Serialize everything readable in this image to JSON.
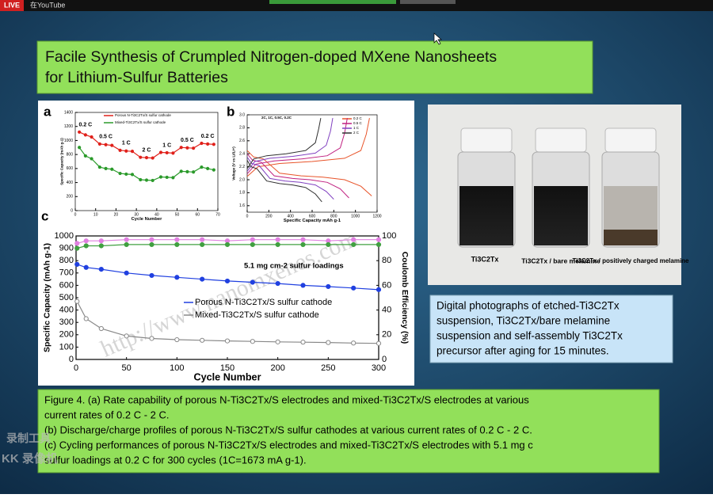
{
  "top_bar": {
    "live": "LIVE",
    "source": "在YouTube"
  },
  "slide": {
    "title": [
      "Facile Synthesis of Crumpled Nitrogen-doped MXene Nanosheets",
      "for Lithium-Sulfur Batteries"
    ],
    "figure": {
      "panels": [
        {
          "label": "a",
          "type": "line",
          "x_label": "Cycle Number",
          "y_label": "Specific Capacity (mAh g-1)",
          "x": [
            2,
            5,
            8,
            12,
            15,
            18,
            22,
            25,
            28,
            32,
            35,
            38,
            42,
            45,
            48,
            52,
            55,
            58,
            62,
            65,
            68
          ],
          "xlim": [
            0,
            70
          ],
          "xticks": [
            0,
            10,
            20,
            30,
            40,
            50,
            60,
            70
          ],
          "ylim": [
            0,
            1400
          ],
          "yticks": [
            0,
            200,
            400,
            600,
            800,
            1000,
            1200,
            1400
          ],
          "rate_labels": [
            "0.2 C",
            "0.5 C",
            "1 C",
            "2 C",
            "1 C",
            "0.5 C",
            "0.2 C"
          ],
          "series": [
            {
              "name": "Porous N-Ti3C2Tx/S sulfur cathode",
              "color": "#e0201a",
              "values": [
                1120,
                1080,
                1050,
                950,
                940,
                930,
                860,
                850,
                845,
                760,
                755,
                750,
                830,
                825,
                820,
                900,
                895,
                890,
                960,
                950,
                945
              ]
            },
            {
              "name": "Mixed-Ti3C2Tx/S sulfur cathode",
              "color": "#2a9a2a",
              "values": [
                900,
                780,
                740,
                620,
                600,
                590,
                530,
                520,
                515,
                440,
                435,
                430,
                480,
                475,
                470,
                560,
                555,
                550,
                620,
                600,
                580
              ]
            }
          ]
        },
        {
          "label": "b",
          "type": "curve",
          "x_label": "Specific Capacity mAh g-1",
          "y_label": "Voltage (V vs Li/Li+)",
          "annotation": "2C, 1C, 0.5C, 0.2C",
          "xlim": [
            0,
            1200
          ],
          "xticks": [
            0,
            200,
            400,
            600,
            800,
            1000,
            1200
          ],
          "ylim": [
            1.5,
            3.0
          ],
          "yticks": [
            1.6,
            1.8,
            {
              "value": 2,
              "label": "2.0"
            },
            2.2,
            2.4,
            2.6,
            2.8,
            {
              "value": 3,
              "label": "3.0"
            }
          ],
          "series": [
            {
              "name": "0.2 C",
              "color": "#e8542a",
              "x": [
                0,
                60,
                150,
                300,
                500,
                700,
                900,
                1050,
                1150,
                null,
                0,
                100,
                300,
                600,
                900,
                1050,
                1100,
                1130
              ],
              "values": [
                2.45,
                2.35,
                2.32,
                2.1,
                2.06,
                2.04,
                2.0,
                1.9,
                1.75,
                null,
                2.05,
                2.2,
                2.25,
                2.28,
                2.33,
                2.45,
                2.7,
                2.95
              ]
            },
            {
              "name": "0.5 C",
              "color": "#c02080",
              "x": [
                0,
                50,
                130,
                250,
                420,
                580,
                740,
                860,
                940,
                null,
                0,
                80,
                250,
                500,
                740,
                860,
                900,
                925
              ],
              "values": [
                2.4,
                2.3,
                2.27,
                2.06,
                2.02,
                2.0,
                1.96,
                1.86,
                1.72,
                null,
                2.09,
                2.24,
                2.29,
                2.32,
                2.37,
                2.49,
                2.72,
                2.95
              ]
            },
            {
              "name": "1 C",
              "color": "#8040c0",
              "x": [
                0,
                40,
                110,
                210,
                350,
                490,
                630,
                730,
                800,
                null,
                0,
                70,
                210,
                420,
                630,
                730,
                770,
                790
              ],
              "values": [
                2.35,
                2.25,
                2.22,
                2.02,
                1.98,
                1.96,
                1.92,
                1.82,
                1.7,
                null,
                2.13,
                2.28,
                2.33,
                2.36,
                2.41,
                2.53,
                2.75,
                2.95
              ]
            },
            {
              "name": "2 C",
              "color": "#303030",
              "x": [
                0,
                35,
                90,
                180,
                300,
                420,
                540,
                630,
                690,
                null,
                0,
                60,
                180,
                360,
                540,
                630,
                660,
                680
              ],
              "values": [
                2.3,
                2.2,
                2.17,
                1.98,
                1.94,
                1.92,
                1.88,
                1.78,
                1.66,
                null,
                2.17,
                2.32,
                2.37,
                2.4,
                2.45,
                2.57,
                2.78,
                2.95
              ]
            }
          ]
        },
        {
          "label": "c",
          "type": "line",
          "x_label": "Cycle Number",
          "y_label": "Specific Capacity (mAh g-1)",
          "y2_label": "Coulomb Efficiency (%)",
          "annotation": "5.1 mg cm-2 sulfur loadings",
          "x": [
            1,
            10,
            25,
            50,
            75,
            100,
            125,
            150,
            175,
            200,
            225,
            250,
            275,
            300
          ],
          "xlim": [
            0,
            300
          ],
          "xticks": [
            0,
            50,
            100,
            150,
            200,
            250,
            300
          ],
          "ylim": [
            0,
            1000
          ],
          "yticks": [
            0,
            100,
            200,
            300,
            400,
            500,
            600,
            700,
            800,
            900,
            1000
          ],
          "y2lim": [
            0,
            100
          ],
          "y2ticks": [
            0,
            20,
            40,
            60,
            80,
            100
          ],
          "series": [
            {
              "name": "Porous N-Ti3C2Tx/S sulfur cathode",
              "color": "#2040e0",
              "values": [
                770,
                745,
                730,
                700,
                680,
                665,
                650,
                635,
                625,
                615,
                600,
                590,
                578,
                565
              ]
            },
            {
              "name": "Mixed-Ti3C2Tx/S sulfur cathode",
              "color": "#888888",
              "values": [
                470,
                330,
                250,
                190,
                170,
                160,
                155,
                150,
                146,
                142,
                140,
                137,
                133,
                130
              ]
            },
            {
              "color": "#e080e0",
              "axis": "y2",
              "values": [
                94,
                96,
                96,
                97,
                97,
                97,
                97,
                96,
                97,
                97,
                97,
                96,
                97,
                97
              ]
            },
            {
              "color": "#40a040",
              "axis": "y2",
              "values": [
                90,
                92,
                92,
                93,
                93,
                93,
                93,
                93,
                93,
                93,
                93,
                93,
                93,
                93
              ]
            }
          ]
        }
      ]
    },
    "photo": {
      "labels": [
        "Ti3C2Tx",
        "Ti3C2Tx / bare melamine",
        "Ti3C2Tx / positively charged melamine"
      ]
    },
    "photo_caption": [
      "Digital photographs of etched-Ti3C2Tx",
      "suspension, Ti3C2Tx/bare melamine",
      "suspension and self-assembly Ti3C2Tx",
      "precursor after aging for 15 minutes."
    ],
    "caption": [
      "Figure 4. (a) Rate capability of porous N-Ti3C2Tx/S electrodes and mixed-Ti3C2Tx/S electrodes at various",
      "current rates of 0.2 C - 2 C.",
      "(b) Discharge/charge profiles of porous N-Ti3C2Tx/S sulfur cathodes at various current rates of 0.2 C - 2 C.",
      "(c) Cycling performances of porous N-Ti3C2Tx/S electrodes and mixed-Ti3C2Tx/S electrodes with 5.1 mg c",
      "sulfur loadings at 0.2 C for 300 cycles (1C=1673 mA g-1)."
    ]
  },
  "watermark": "http://www.nanomxenes.com",
  "overlay": [
    "录制工具",
    "KK 录像机"
  ]
}
